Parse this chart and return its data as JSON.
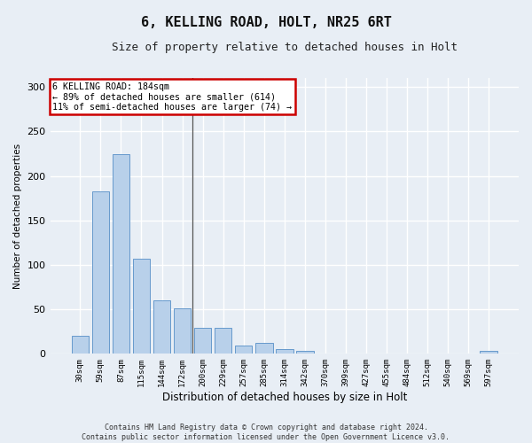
{
  "title1": "6, KELLING ROAD, HOLT, NR25 6RT",
  "title2": "Size of property relative to detached houses in Holt",
  "xlabel": "Distribution of detached houses by size in Holt",
  "ylabel": "Number of detached properties",
  "bar_labels": [
    "30sqm",
    "59sqm",
    "87sqm",
    "115sqm",
    "144sqm",
    "172sqm",
    "200sqm",
    "229sqm",
    "257sqm",
    "285sqm",
    "314sqm",
    "342sqm",
    "370sqm",
    "399sqm",
    "427sqm",
    "455sqm",
    "484sqm",
    "512sqm",
    "540sqm",
    "569sqm",
    "597sqm"
  ],
  "bar_values": [
    20,
    183,
    224,
    107,
    60,
    51,
    29,
    29,
    9,
    12,
    5,
    3,
    0,
    0,
    0,
    0,
    0,
    0,
    0,
    0,
    3
  ],
  "bar_color": "#b8d0ea",
  "bar_edgecolor": "#6699cc",
  "annotation_text": "6 KELLING ROAD: 184sqm\n← 89% of detached houses are smaller (614)\n11% of semi-detached houses are larger (74) →",
  "annotation_box_color": "#ffffff",
  "annotation_box_edgecolor": "#cc0000",
  "property_line_x": 5.5,
  "ylim": [
    0,
    310
  ],
  "yticks": [
    0,
    50,
    100,
    150,
    200,
    250,
    300
  ],
  "footer1": "Contains HM Land Registry data © Crown copyright and database right 2024.",
  "footer2": "Contains public sector information licensed under the Open Government Licence v3.0.",
  "background_color": "#e8eef5",
  "plot_background": "#e8eef5",
  "grid_color": "#ffffff",
  "title1_fontsize": 11,
  "title2_fontsize": 9
}
